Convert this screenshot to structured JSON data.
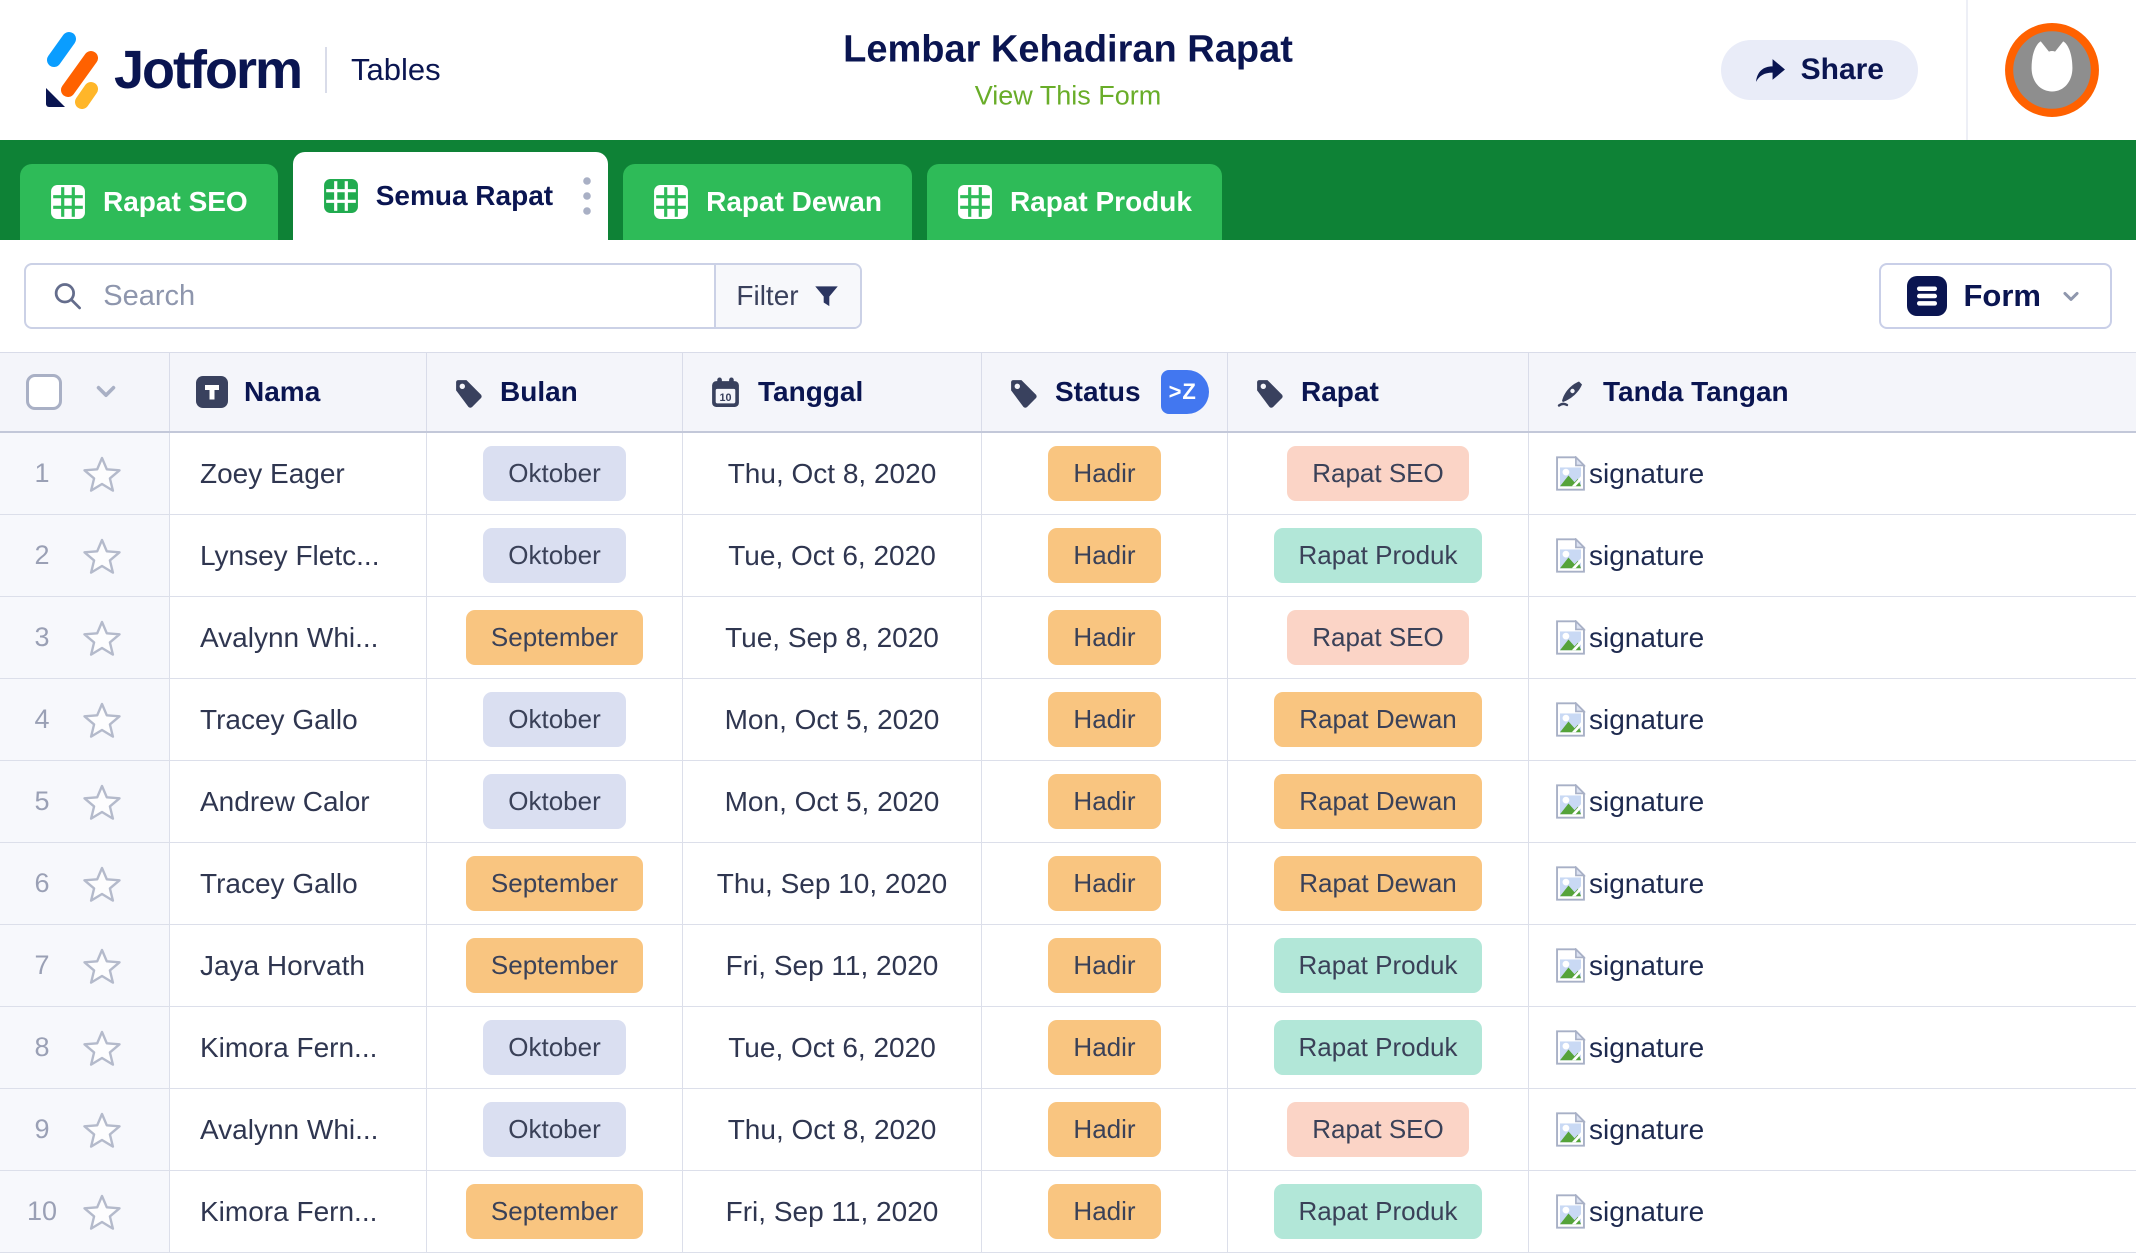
{
  "header": {
    "brand": "Jotform",
    "product": "Tables",
    "title": "Lembar Kehadiran Rapat",
    "view_form_label": "View This Form",
    "share_label": "Share"
  },
  "tabs": [
    {
      "label": "Rapat SEO",
      "icon": "table-grid-icon",
      "active": false
    },
    {
      "label": "Semua Rapat",
      "icon": "table-grid-icon",
      "active": true,
      "menu_icon": "kebab-menu-icon"
    },
    {
      "label": "Rapat Dewan",
      "icon": "table-grid-icon",
      "active": false
    },
    {
      "label": "Rapat Produk",
      "icon": "table-grid-icon",
      "active": false
    }
  ],
  "toolbar": {
    "search_placeholder": "Search",
    "filter_label": "Filter",
    "form_label": "Form"
  },
  "table": {
    "columns": [
      {
        "key": "nama",
        "label": "Nama",
        "icon": "text-field-icon"
      },
      {
        "key": "bulan",
        "label": "Bulan",
        "icon": "tag-icon"
      },
      {
        "key": "tanggal",
        "label": "Tanggal",
        "icon": "calendar-icon"
      },
      {
        "key": "status",
        "label": "Status",
        "icon": "tag-icon",
        "sort_badge": ">Z"
      },
      {
        "key": "rapat",
        "label": "Rapat",
        "icon": "tag-icon"
      },
      {
        "key": "tanda_tangan",
        "label": "Tanda Tangan",
        "icon": "signature-icon"
      }
    ],
    "signature_alt": "signature",
    "chip_styles": {
      "Oktober": "chip-periwinkle",
      "September": "chip-orange",
      "Hadir": "chip-orange",
      "Rapat SEO": "chip-pink",
      "Rapat Dewan": "chip-orange",
      "Rapat Produk": "chip-teal"
    },
    "rows": [
      {
        "num": "1",
        "nama": "Zoey Eager",
        "bulan": "Oktober",
        "tanggal": "Thu, Oct 8, 2020",
        "status": "Hadir",
        "rapat": "Rapat SEO"
      },
      {
        "num": "2",
        "nama": "Lynsey Fletc...",
        "bulan": "Oktober",
        "tanggal": "Tue, Oct 6, 2020",
        "status": "Hadir",
        "rapat": "Rapat Produk"
      },
      {
        "num": "3",
        "nama": "Avalynn Whi...",
        "bulan": "September",
        "tanggal": "Tue, Sep 8, 2020",
        "status": "Hadir",
        "rapat": "Rapat SEO"
      },
      {
        "num": "4",
        "nama": "Tracey Gallo",
        "bulan": "Oktober",
        "tanggal": "Mon, Oct 5, 2020",
        "status": "Hadir",
        "rapat": "Rapat Dewan"
      },
      {
        "num": "5",
        "nama": "Andrew Calor",
        "bulan": "Oktober",
        "tanggal": "Mon, Oct 5, 2020",
        "status": "Hadir",
        "rapat": "Rapat Dewan"
      },
      {
        "num": "6",
        "nama": "Tracey Gallo",
        "bulan": "September",
        "tanggal": "Thu, Sep 10, 2020",
        "status": "Hadir",
        "rapat": "Rapat Dewan"
      },
      {
        "num": "7",
        "nama": "Jaya Horvath",
        "bulan": "September",
        "tanggal": "Fri, Sep 11, 2020",
        "status": "Hadir",
        "rapat": "Rapat Produk"
      },
      {
        "num": "8",
        "nama": "Kimora Fern...",
        "bulan": "Oktober",
        "tanggal": "Tue, Oct 6, 2020",
        "status": "Hadir",
        "rapat": "Rapat Produk"
      },
      {
        "num": "9",
        "nama": "Avalynn Whi...",
        "bulan": "Oktober",
        "tanggal": "Thu, Oct 8, 2020",
        "status": "Hadir",
        "rapat": "Rapat SEO"
      },
      {
        "num": "10",
        "nama": "Kimora Fern...",
        "bulan": "September",
        "tanggal": "Fri, Sep 11, 2020",
        "status": "Hadir",
        "rapat": "Rapat Produk"
      }
    ]
  },
  "colors": {
    "brand_navy": "#0A1551",
    "link_green": "#69AD29",
    "bar_green": "#0E8236",
    "tab_green": "#2EBB58",
    "sort_blue": "#4277F0",
    "chip_orange": "#F9C580",
    "chip_periwinkle": "#DADFF1",
    "chip_pink": "#FBD4C6",
    "chip_teal": "#B2E7D8",
    "avatar_ring_orange": "#FF6100"
  }
}
